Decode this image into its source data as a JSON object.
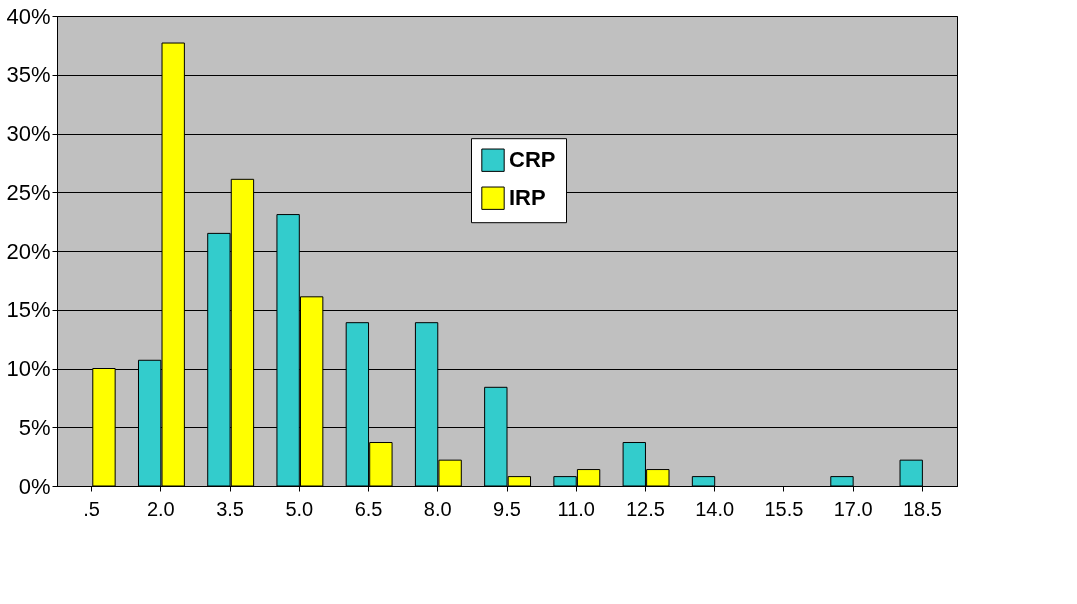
{
  "chart_data": {
    "type": "bar",
    "categories": [
      ".5",
      "2.0",
      "3.5",
      "5.0",
      "6.5",
      "8.0",
      "9.5",
      "11.0",
      "12.5",
      "14.0",
      "15.5",
      "17.0",
      "18.5"
    ],
    "series": [
      {
        "name": "CRP",
        "color": "#33cccc",
        "values": [
          null,
          10.7,
          21.5,
          23.1,
          13.9,
          13.9,
          8.4,
          0.8,
          3.7,
          0.8,
          null,
          0.8,
          2.2
        ]
      },
      {
        "name": "IRP",
        "color": "#ffff00",
        "values": [
          10,
          37.7,
          26.1,
          16.1,
          3.7,
          2.2,
          0.8,
          1.4,
          1.4,
          null,
          null,
          null,
          null
        ]
      }
    ],
    "ylim": [
      0,
      40
    ],
    "yticks": [
      {
        "value": 0,
        "label": "0%"
      },
      {
        "value": 5,
        "label": "5%"
      },
      {
        "value": 10,
        "label": "10%"
      },
      {
        "value": 15,
        "label": "15%"
      },
      {
        "value": 20,
        "label": "20%"
      },
      {
        "value": 25,
        "label": "25%"
      },
      {
        "value": 30,
        "label": "30%"
      },
      {
        "value": 35,
        "label": "35%"
      },
      {
        "value": 40,
        "label": "40%"
      }
    ],
    "grid": "y",
    "legend": "top right"
  }
}
